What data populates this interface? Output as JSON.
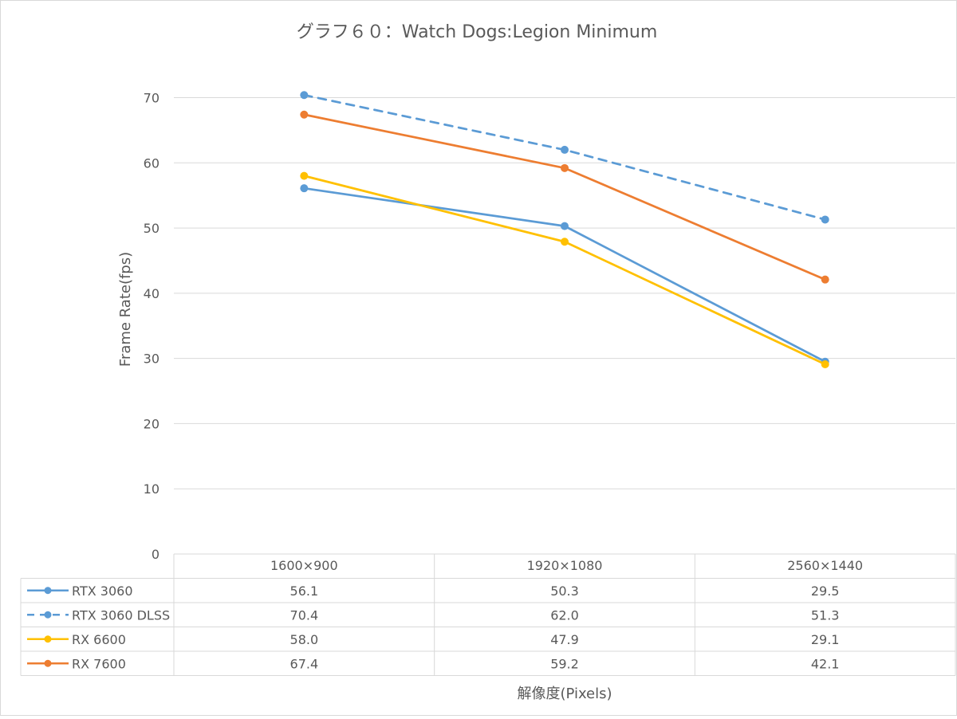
{
  "chart_data": {
    "type": "line",
    "title": "グラフ６０：Watch Dogs:Legion Minimum",
    "xlabel": "解像度(Pixels)",
    "ylabel": "Frame Rate(fps)",
    "categories": [
      "1600×900",
      "1920×1080",
      "2560×1440"
    ],
    "ylim": [
      0,
      70
    ],
    "yticks": [
      0,
      10,
      20,
      30,
      40,
      50,
      60,
      70
    ],
    "grid": true,
    "legend": "data-table",
    "series": [
      {
        "name": "RTX 3060",
        "values": [
          56.1,
          50.3,
          29.5
        ],
        "labels": [
          "56.1",
          "50.3",
          "29.5"
        ],
        "color": "#5B9BD5",
        "dashed": false
      },
      {
        "name": "RTX 3060 DLSS",
        "values": [
          70.4,
          62.0,
          51.3
        ],
        "labels": [
          "70.4",
          "62.0",
          "51.3"
        ],
        "color": "#5B9BD5",
        "dashed": true
      },
      {
        "name": "RX 6600",
        "values": [
          58.0,
          47.9,
          29.1
        ],
        "labels": [
          "58.0",
          "47.9",
          "29.1"
        ],
        "color": "#FFC000",
        "dashed": false
      },
      {
        "name": "RX 7600",
        "values": [
          67.4,
          59.2,
          42.1
        ],
        "labels": [
          "67.4",
          "59.2",
          "42.1"
        ],
        "color": "#ED7D31",
        "dashed": false
      }
    ]
  }
}
